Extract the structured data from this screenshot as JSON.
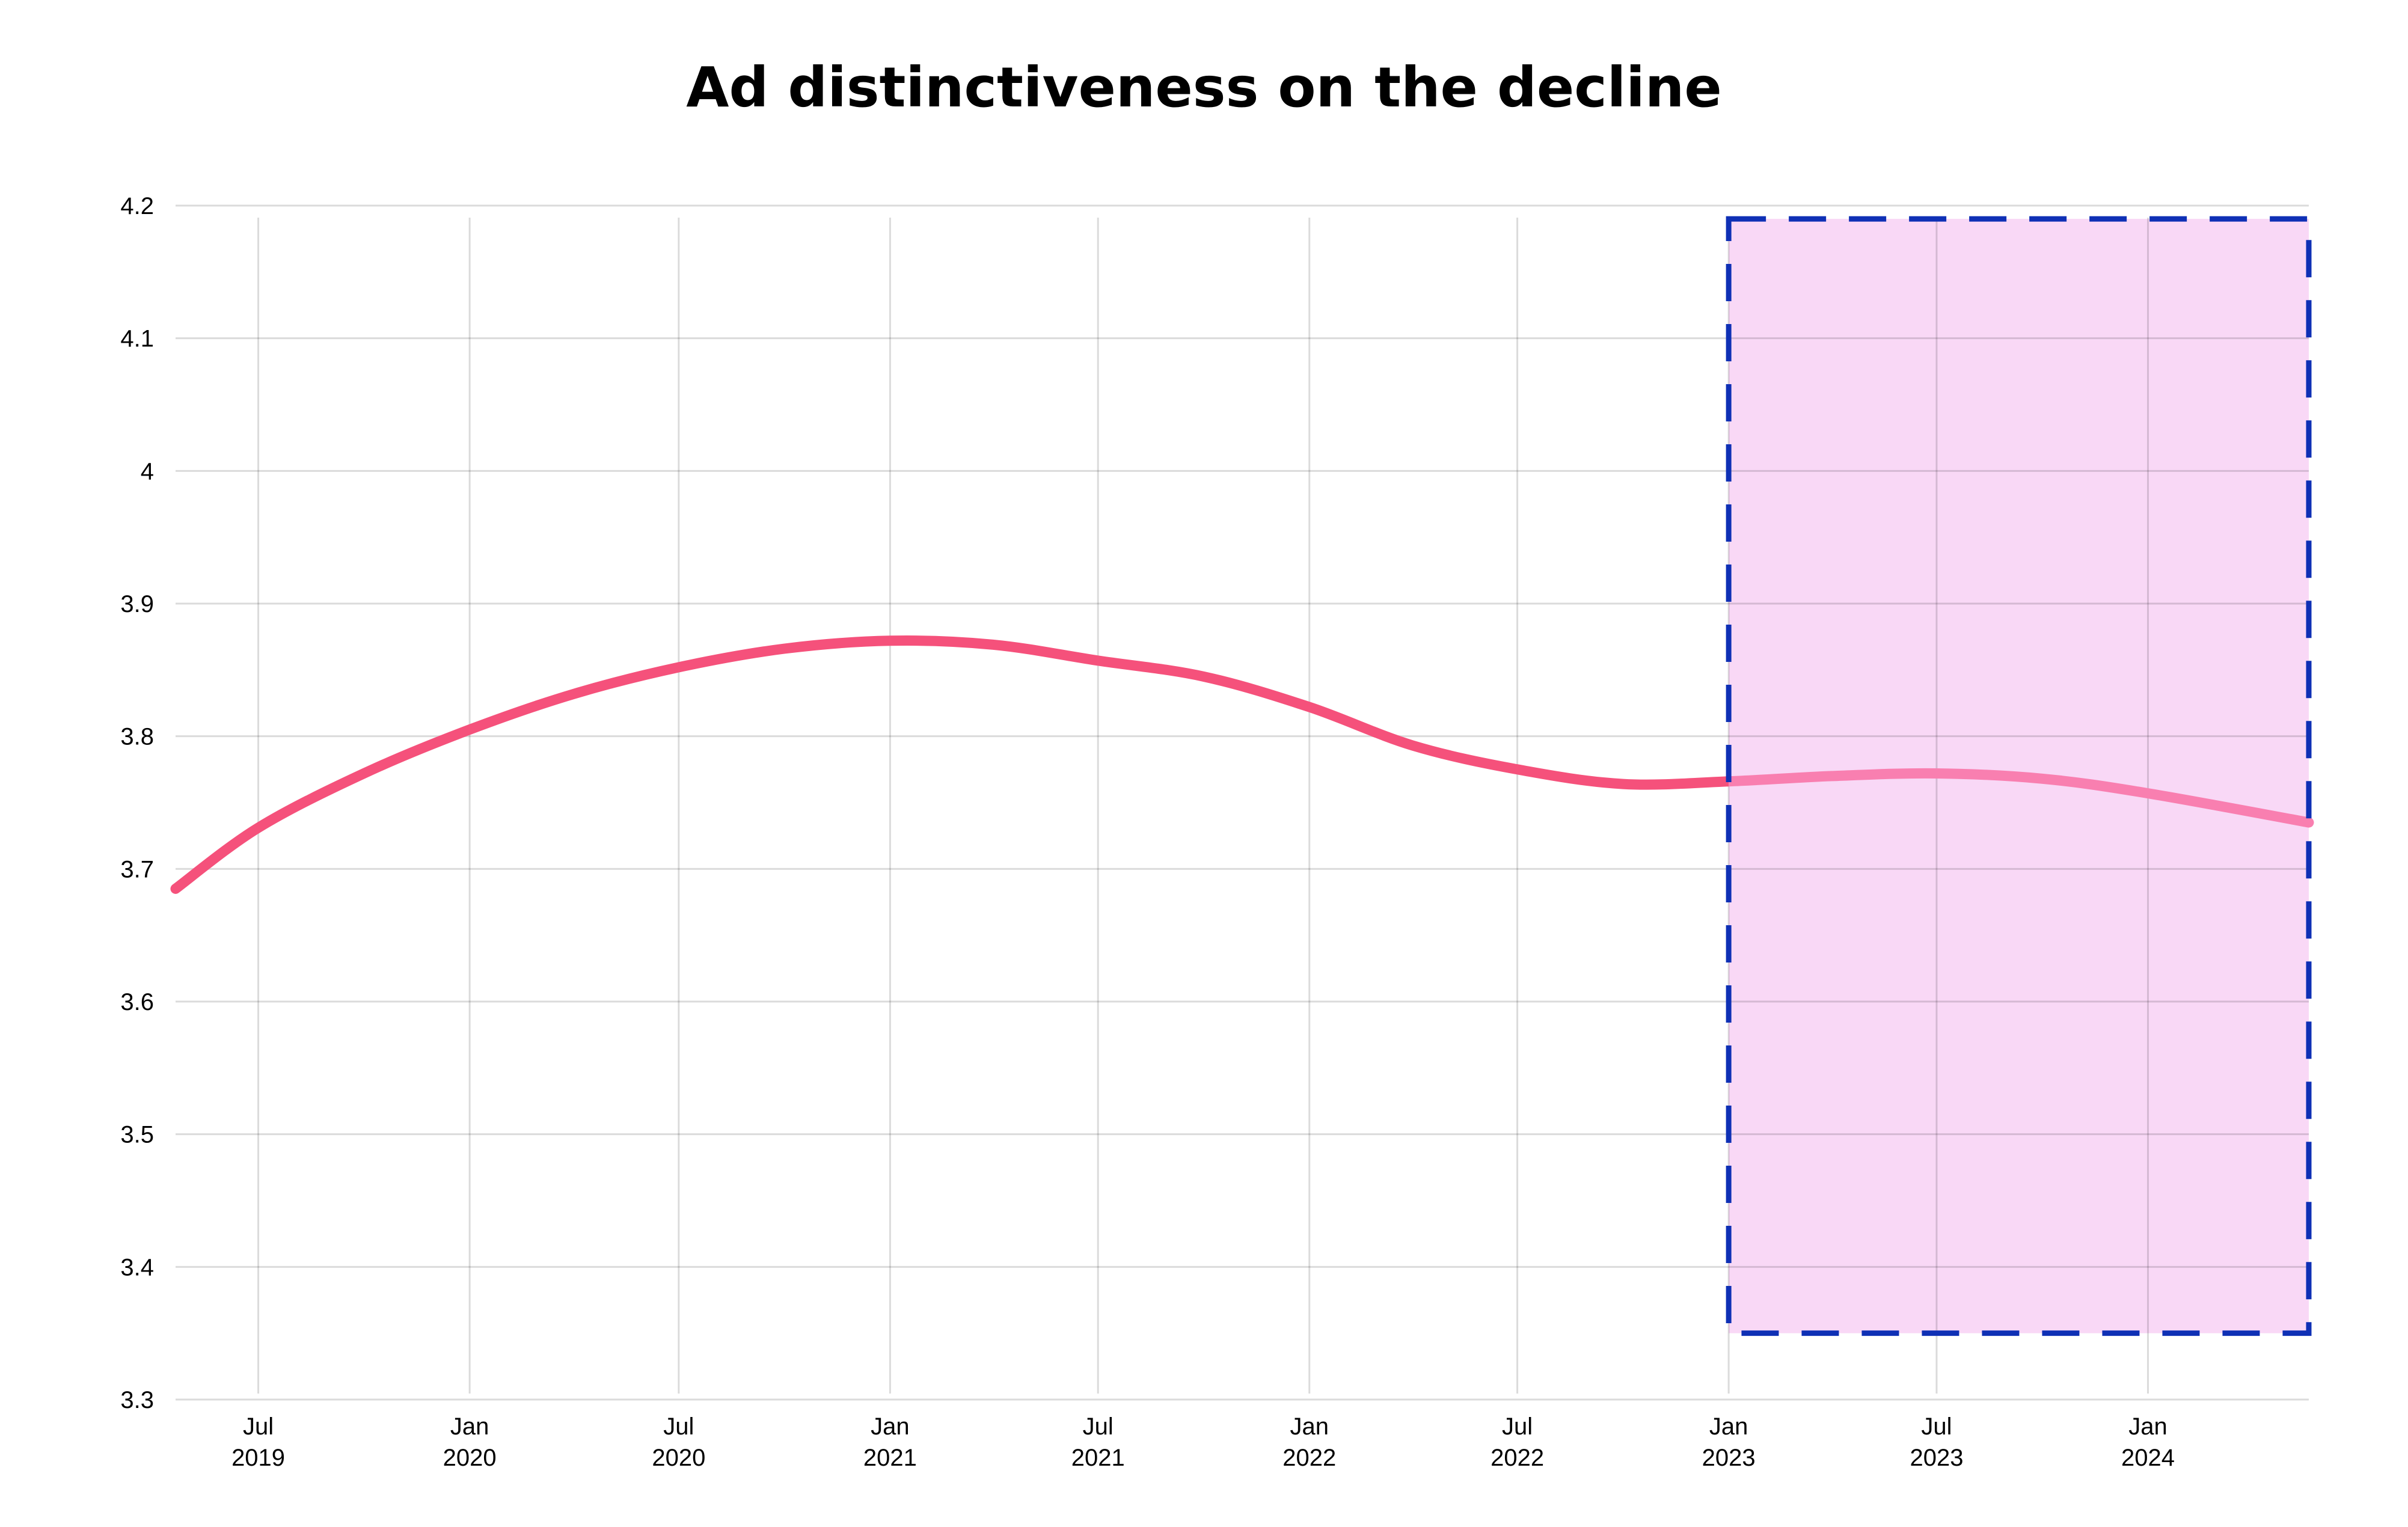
{
  "chart_data": {
    "type": "line",
    "title": "Ad distinctiveness on the decline",
    "xlabel": "",
    "ylabel": "",
    "ylim": [
      3.3,
      4.2
    ],
    "yticks": [
      3.3,
      3.4,
      3.5,
      3.6,
      3.7,
      3.8,
      3.9,
      4,
      4.1,
      4.2
    ],
    "xlim": [
      "2019-04-20",
      "2024-05-20"
    ],
    "xticks": [
      {
        "date": "2019-07-01",
        "month": "Jul",
        "year": "2019"
      },
      {
        "date": "2020-01-01",
        "month": "Jan",
        "year": "2020"
      },
      {
        "date": "2020-07-01",
        "month": "Jul",
        "year": "2020"
      },
      {
        "date": "2021-01-01",
        "month": "Jan",
        "year": "2021"
      },
      {
        "date": "2021-07-01",
        "month": "Jul",
        "year": "2021"
      },
      {
        "date": "2022-01-01",
        "month": "Jan",
        "year": "2022"
      },
      {
        "date": "2022-07-01",
        "month": "Jul",
        "year": "2022"
      },
      {
        "date": "2023-01-01",
        "month": "Jan",
        "year": "2023"
      },
      {
        "date": "2023-07-01",
        "month": "Jul",
        "year": "2023"
      },
      {
        "date": "2024-01-01",
        "month": "Jan",
        "year": "2024"
      }
    ],
    "grid": true,
    "legend": "none",
    "series": [
      {
        "color": "#f5517b",
        "highlight_color": "#f97fb0",
        "points": [
          {
            "x": "2019-04-20",
            "y": 3.685
          },
          {
            "x": "2019-07-01",
            "y": 3.731
          },
          {
            "x": "2019-10-01",
            "y": 3.772
          },
          {
            "x": "2020-01-01",
            "y": 3.805
          },
          {
            "x": "2020-04-01",
            "y": 3.832
          },
          {
            "x": "2020-07-01",
            "y": 3.852
          },
          {
            "x": "2020-10-01",
            "y": 3.866
          },
          {
            "x": "2021-01-01",
            "y": 3.872
          },
          {
            "x": "2021-04-01",
            "y": 3.869
          },
          {
            "x": "2021-07-01",
            "y": 3.857
          },
          {
            "x": "2021-10-01",
            "y": 3.845
          },
          {
            "x": "2022-01-01",
            "y": 3.822
          },
          {
            "x": "2022-04-01",
            "y": 3.793
          },
          {
            "x": "2022-07-01",
            "y": 3.775
          },
          {
            "x": "2022-10-01",
            "y": 3.764
          },
          {
            "x": "2023-01-01",
            "y": 3.766
          },
          {
            "x": "2023-04-01",
            "y": 3.77
          },
          {
            "x": "2023-07-01",
            "y": 3.772
          },
          {
            "x": "2023-10-01",
            "y": 3.768
          },
          {
            "x": "2024-01-01",
            "y": 3.757
          },
          {
            "x": "2024-05-20",
            "y": 3.735
          }
        ]
      }
    ],
    "highlight": {
      "x_start": "2023-01-01",
      "x_end": "2024-05-20",
      "y_start": 3.35,
      "y_end": 4.19,
      "fill_color": "#f9d8f6",
      "border_color": "#0f30b5"
    }
  }
}
